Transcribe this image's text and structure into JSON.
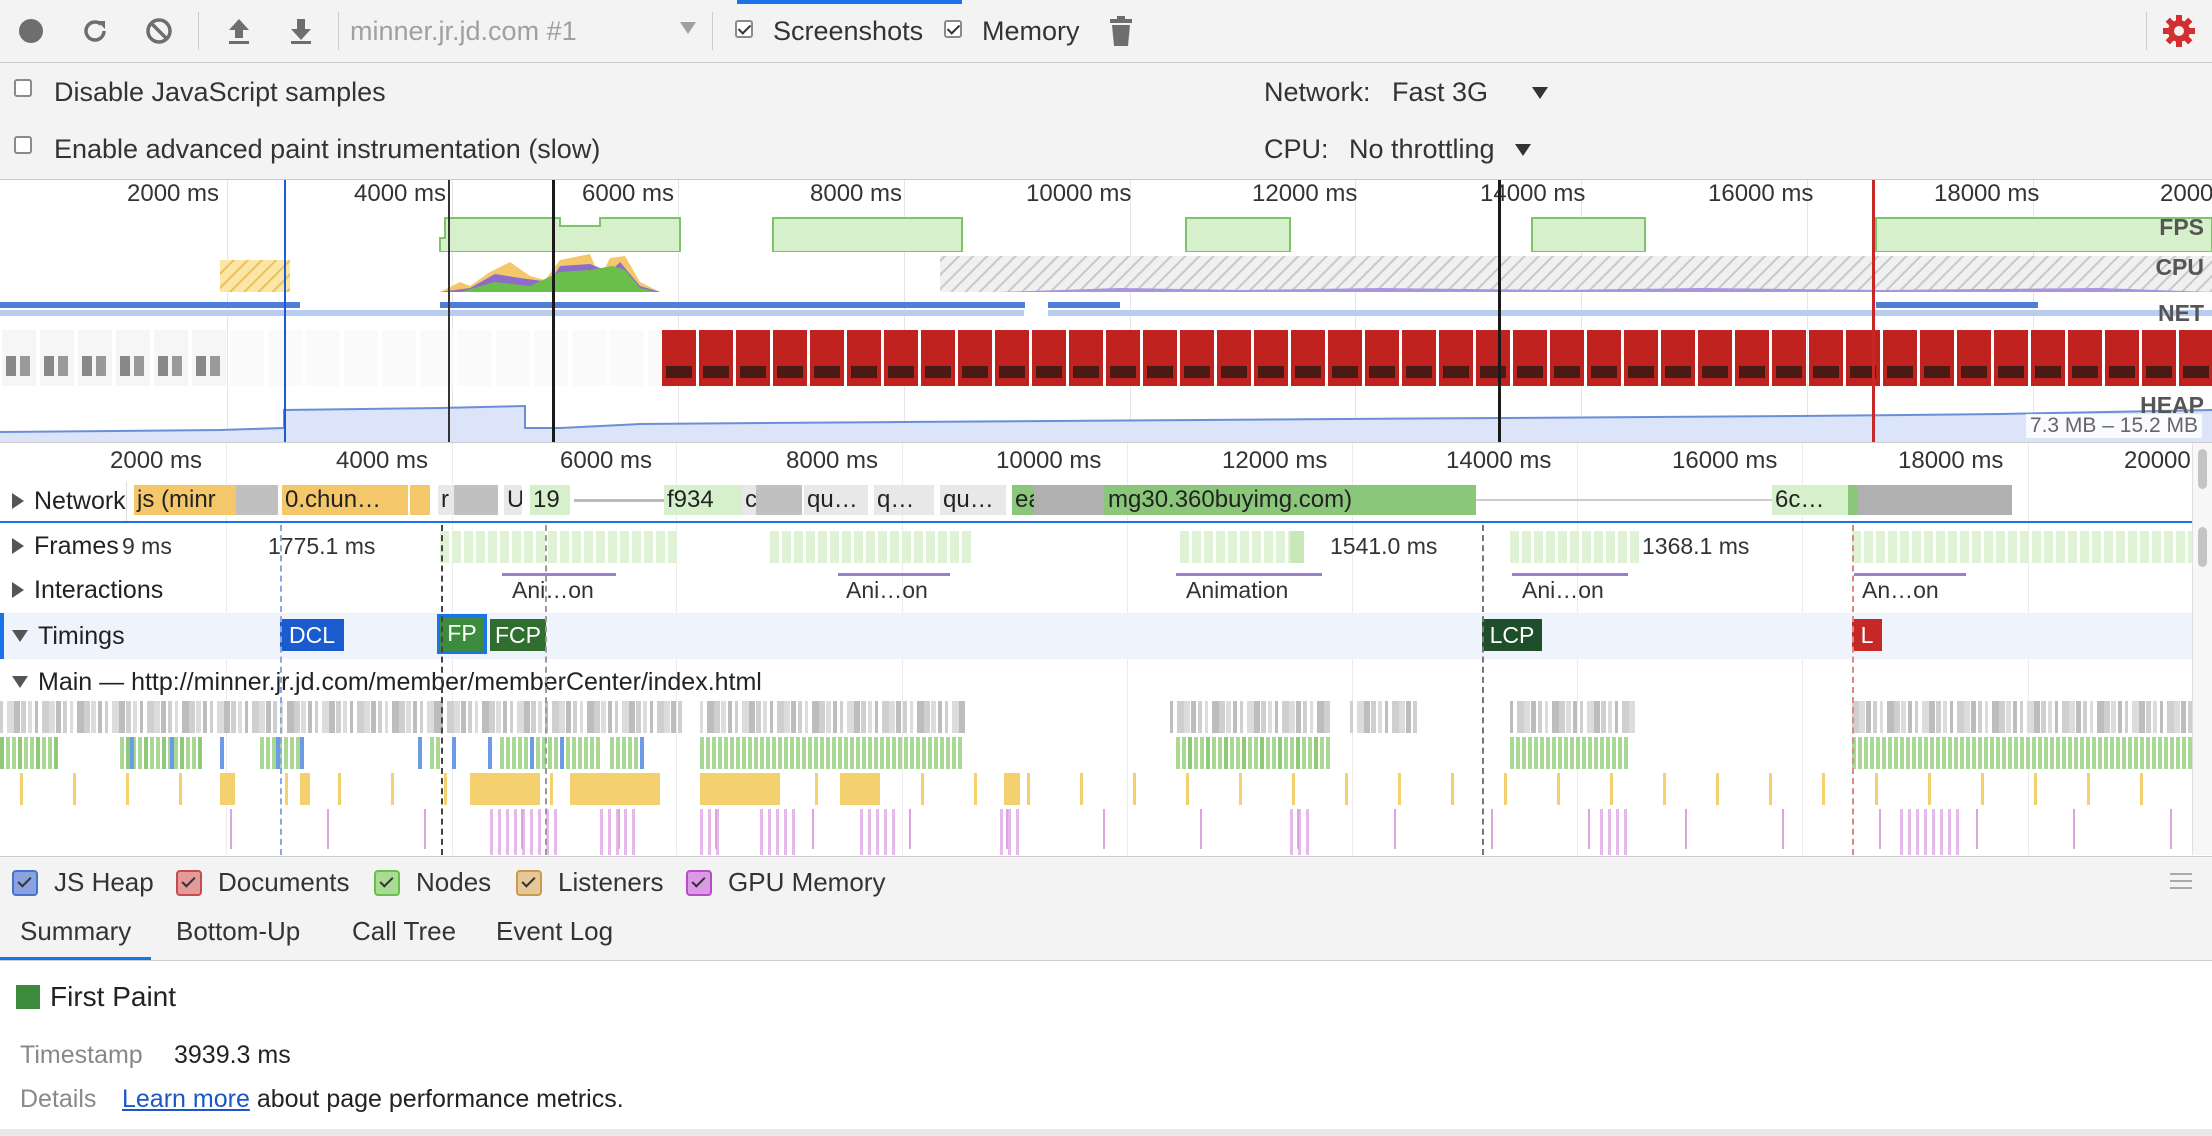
{
  "toolbar": {
    "target_select": "minner.jr.jd.com #1",
    "screenshots_label": "Screenshots",
    "screenshots_checked": true,
    "memory_label": "Memory",
    "memory_checked": true,
    "icons": [
      "record-icon",
      "reload-icon",
      "clear-icon",
      "upload-icon",
      "download-icon",
      "trash-icon",
      "gear-icon"
    ]
  },
  "settings": {
    "disable_js_samples": "Disable JavaScript samples",
    "advanced_paint": "Enable advanced paint instrumentation (slow)",
    "network_label": "Network:",
    "network_value": "Fast 3G",
    "cpu_label": "CPU:",
    "cpu_value": "No throttling"
  },
  "overview": {
    "ticks": [
      "2000 ms",
      "4000 ms",
      "6000 ms",
      "8000 ms",
      "10000 ms",
      "12000 ms",
      "14000 ms",
      "16000 ms",
      "18000 ms",
      "2000"
    ],
    "tracks": {
      "fps": "FPS",
      "cpu": "CPU",
      "net": "NET",
      "heap": "HEAP"
    },
    "heap_range": "7.3 MB – 15.2 MB"
  },
  "flame": {
    "ticks": [
      "2000 ms",
      "4000 ms",
      "6000 ms",
      "8000 ms",
      "10000 ms",
      "12000 ms",
      "14000 ms",
      "16000 ms",
      "18000 ms",
      "20000"
    ],
    "network": {
      "label": "Network",
      "bars": [
        "js (minr",
        "0.chun…",
        "r",
        "U",
        "19",
        "f934",
        "c",
        "qu…",
        "q…",
        "qu…",
        "ea",
        "mg30.360buyimg.com)",
        "6c…"
      ]
    },
    "frames": {
      "label": "Frames",
      "times": [
        "9 ms",
        "1775.1 ms",
        "1541.0 ms",
        "1368.1 ms"
      ]
    },
    "interactions": {
      "label": "Interactions",
      "items": [
        "Ani…on",
        "Ani…on",
        "Animation",
        "Ani…on",
        "An…on"
      ]
    },
    "timings": {
      "label": "Timings",
      "marks": [
        "DCL",
        "FP",
        "FCP",
        "LCP",
        "L"
      ]
    },
    "main": {
      "label": "Main — http://minner.jr.jd.com/member/memberCenter/index.html"
    }
  },
  "legend": [
    {
      "label": "JS Heap",
      "color": "#4a72c9"
    },
    {
      "label": "Documents",
      "color": "#c94a4a"
    },
    {
      "label": "Nodes",
      "color": "#6abf4b"
    },
    {
      "label": "Listeners",
      "color": "#c99a4a"
    },
    {
      "label": "GPU Memory",
      "color": "#b94ac9"
    }
  ],
  "tabs": [
    "Summary",
    "Bottom-Up",
    "Call Tree",
    "Event Log"
  ],
  "summary": {
    "title": "First Paint",
    "color": "#3d8b3d",
    "timestamp_label": "Timestamp",
    "timestamp_value": "3939.3 ms",
    "details_label": "Details",
    "learn_more": "Learn more",
    "details_rest": "about page performance metrics."
  }
}
